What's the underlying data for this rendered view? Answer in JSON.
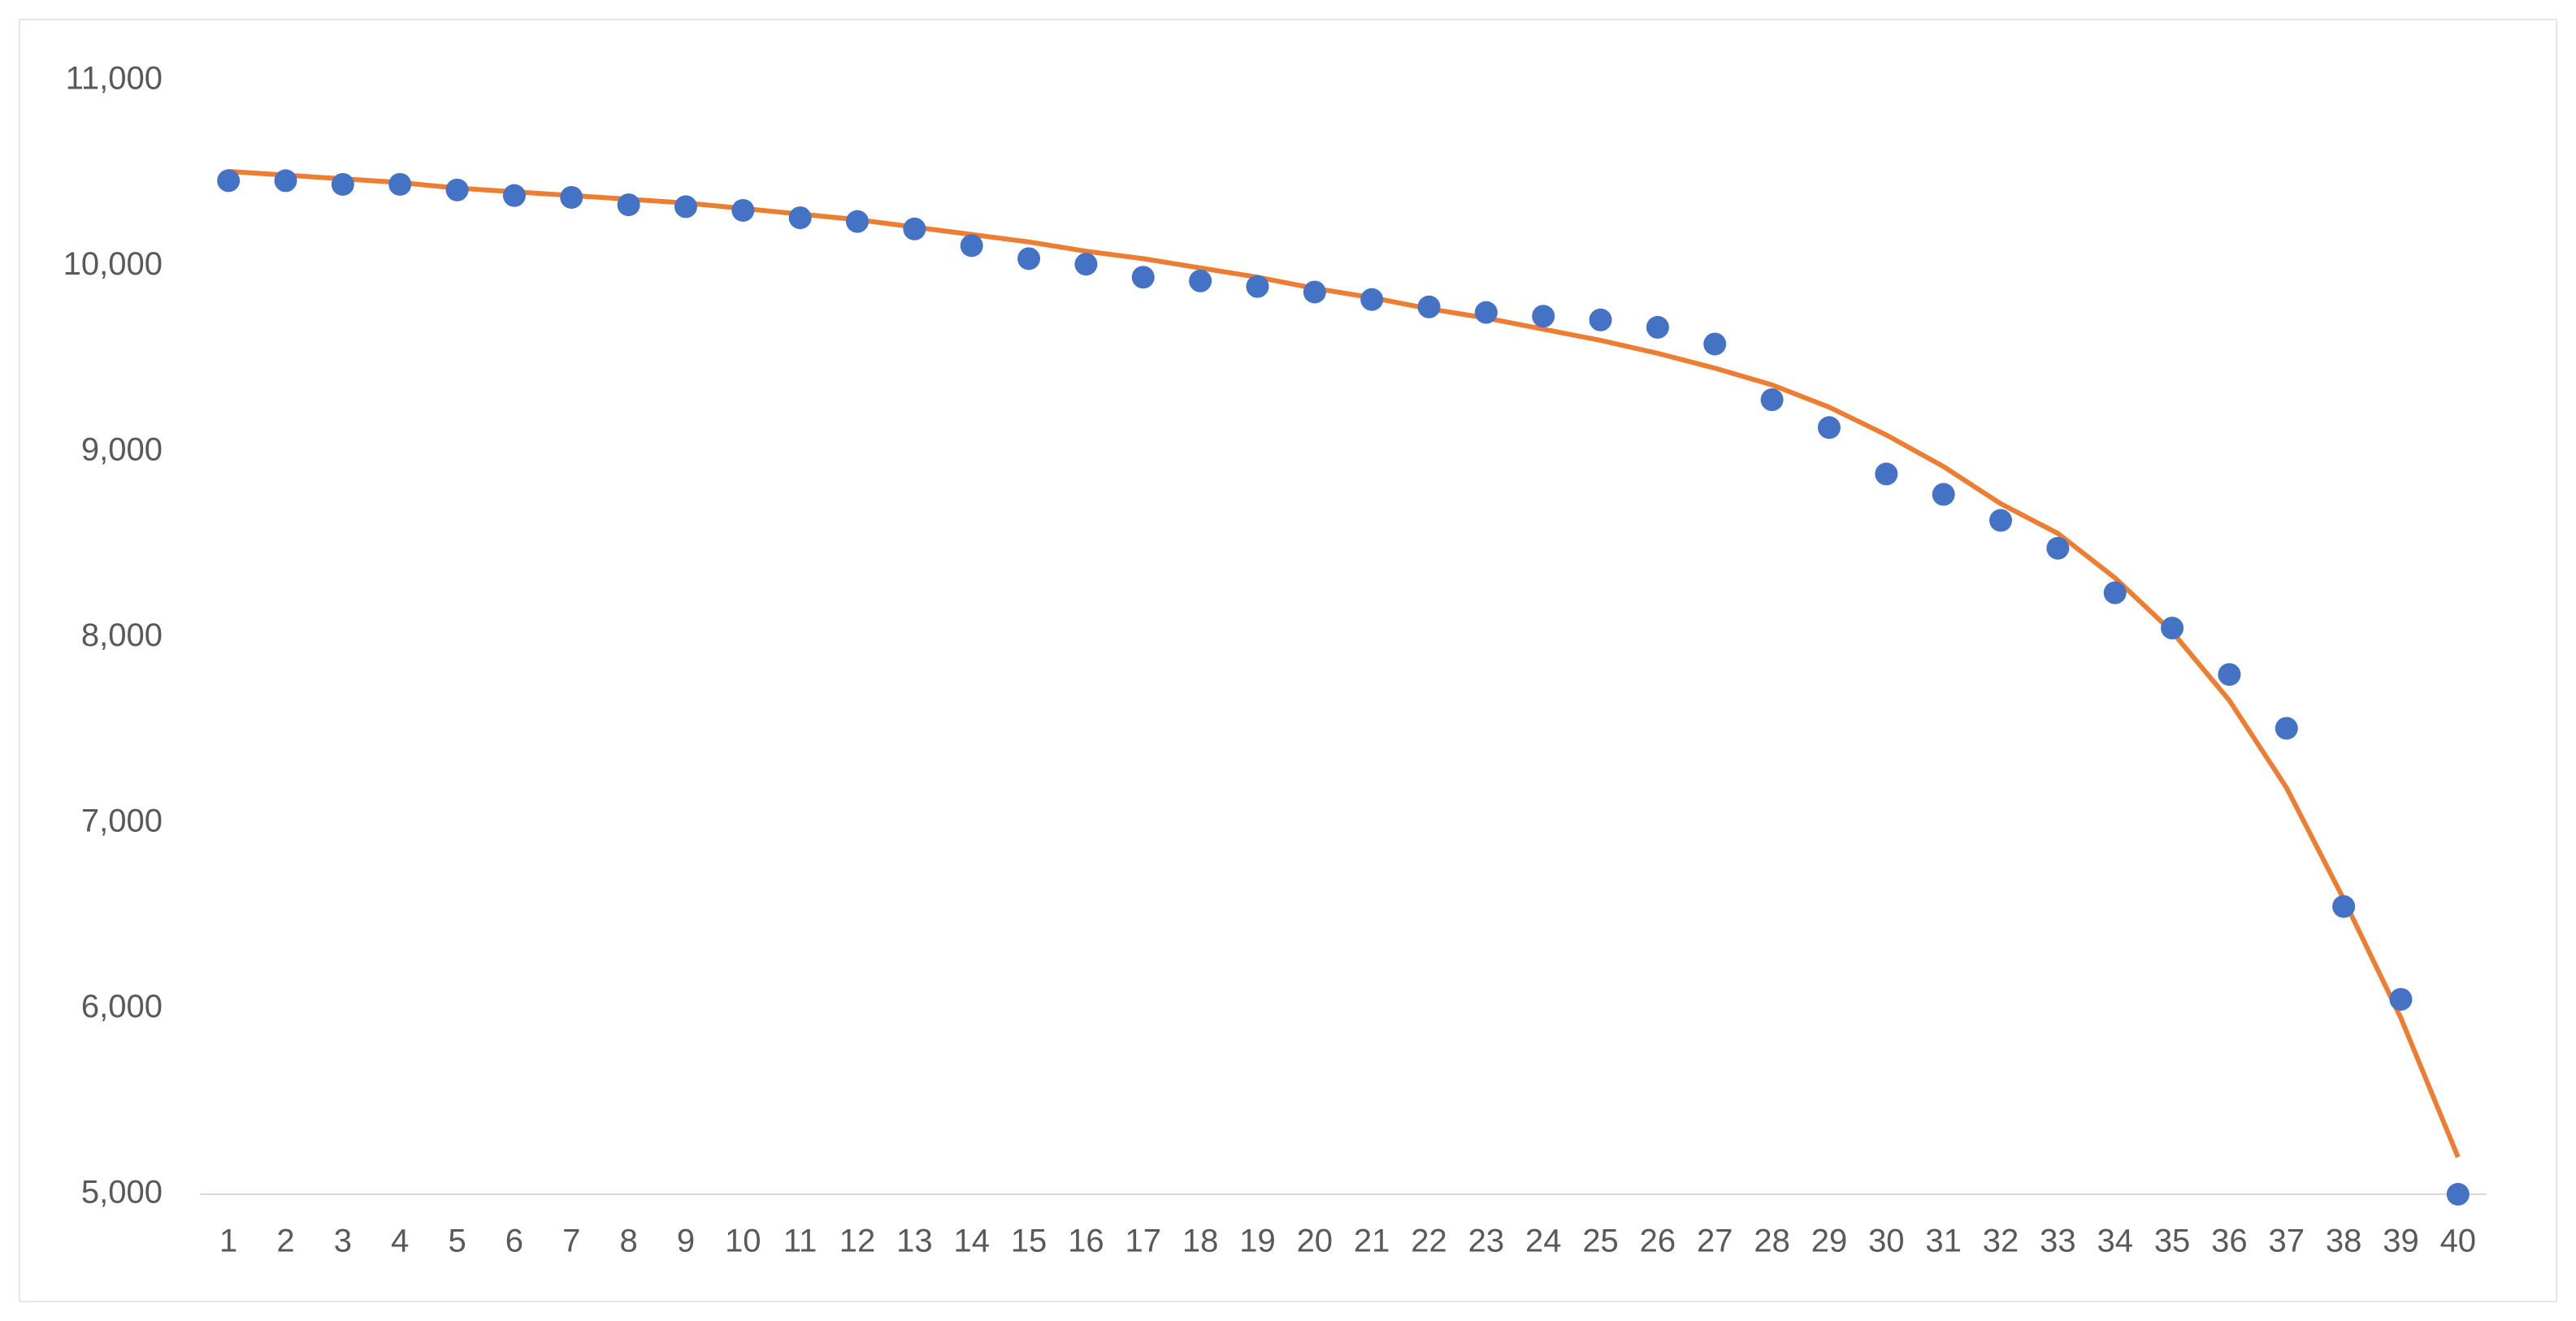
{
  "chart_data": {
    "type": "scatter",
    "x": [
      1,
      2,
      3,
      4,
      5,
      6,
      7,
      8,
      9,
      10,
      11,
      12,
      13,
      14,
      15,
      16,
      17,
      18,
      19,
      20,
      21,
      22,
      23,
      24,
      25,
      26,
      27,
      28,
      29,
      30,
      31,
      32,
      33,
      34,
      35,
      36,
      37,
      38,
      39,
      40
    ],
    "series": [
      {
        "color": "#4472c4",
        "mode": "markers",
        "values": [
          10460,
          10460,
          10440,
          10440,
          10410,
          10380,
          10370,
          10330,
          10320,
          10300,
          10260,
          10240,
          10200,
          10110,
          10040,
          10010,
          9940,
          9920,
          9890,
          9860,
          9820,
          9780,
          9750,
          9730,
          9710,
          9670,
          9580,
          9280,
          9130,
          8880,
          8770,
          8630,
          8480,
          8240,
          8050,
          7800,
          7510,
          6550,
          6050,
          5000
        ]
      },
      {
        "color": "#ed7d31",
        "mode": "line",
        "values": [
          10510,
          10490,
          10470,
          10450,
          10420,
          10400,
          10380,
          10360,
          10340,
          10310,
          10280,
          10250,
          10210,
          10170,
          10130,
          10080,
          10040,
          9990,
          9940,
          9880,
          9830,
          9770,
          9720,
          9660,
          9600,
          9530,
          9450,
          9360,
          9240,
          9090,
          8920,
          8720,
          8560,
          8320,
          8030,
          7660,
          7190,
          6590,
          5950,
          5200
        ]
      }
    ],
    "xlim": [
      0.5,
      40.5
    ],
    "xticks": [
      1,
      2,
      3,
      4,
      5,
      6,
      7,
      8,
      9,
      10,
      11,
      12,
      13,
      14,
      15,
      16,
      17,
      18,
      19,
      20,
      21,
      22,
      23,
      24,
      25,
      26,
      27,
      28,
      29,
      30,
      31,
      32,
      33,
      34,
      35,
      36,
      37,
      38,
      39,
      40
    ],
    "ylim": [
      5000,
      11000
    ],
    "yticks": [
      {
        "value": 5000,
        "label": "5,000"
      },
      {
        "value": 6000,
        "label": "6,000"
      },
      {
        "value": 7000,
        "label": "7,000"
      },
      {
        "value": 8000,
        "label": "8,000"
      },
      {
        "value": 9000,
        "label": "9,000"
      },
      {
        "value": 10000,
        "label": "10,000"
      },
      {
        "value": 11000,
        "label": "11,000"
      }
    ],
    "grid": false
  }
}
